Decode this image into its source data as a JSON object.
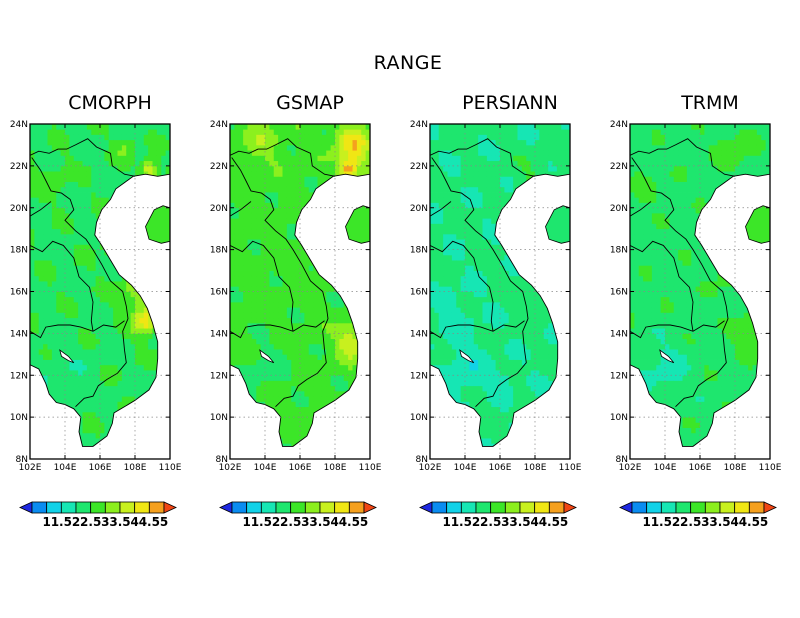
{
  "title": "RANGE",
  "panels": [
    {
      "name": "CMORPH",
      "scheme": "cmorph"
    },
    {
      "name": "GSMAP",
      "scheme": "gsmap"
    },
    {
      "name": "PERSIANN",
      "scheme": "persiann"
    },
    {
      "name": "TRMM",
      "scheme": "trmm"
    }
  ],
  "axes": {
    "x_ticks": [
      "102E",
      "104E",
      "106E",
      "108E",
      "110E"
    ],
    "y_ticks": [
      "24N",
      "22N",
      "20N",
      "18N",
      "16N",
      "14N",
      "12N",
      "10N",
      "8N"
    ],
    "x_range": [
      102,
      110
    ],
    "y_range": [
      8,
      24
    ],
    "grid": true
  },
  "colorbar": {
    "labels": [
      "1",
      "1.5",
      "2",
      "2.5",
      "3",
      "3.5",
      "4",
      "4.5",
      "5"
    ],
    "colors": [
      "#1e28e0",
      "#0a8cf0",
      "#12d2e8",
      "#16e6b4",
      "#1ee66e",
      "#3ce628",
      "#8cf01e",
      "#c8f01e",
      "#f0e614",
      "#f5a01e",
      "#f04614"
    ]
  }
}
